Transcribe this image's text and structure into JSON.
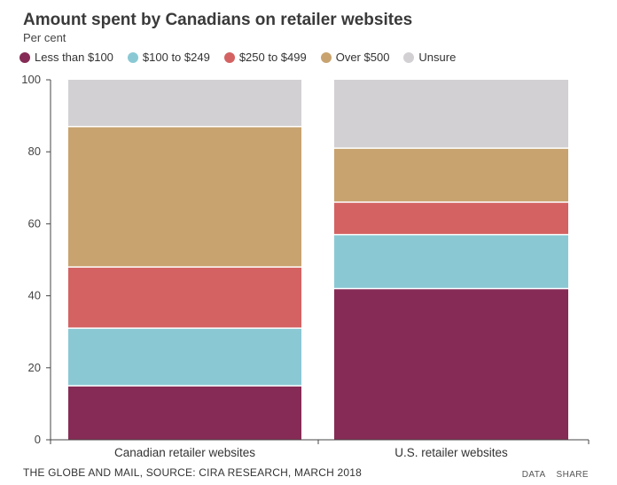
{
  "chart_data": {
    "type": "bar",
    "stacked": true,
    "title": "Amount spent by Canadians on retailer websites",
    "subtitle": "Per cent",
    "xlabel": "",
    "ylabel": "Per cent",
    "ylim": [
      0,
      100
    ],
    "yticks": [
      0,
      20,
      40,
      60,
      80,
      100
    ],
    "categories": [
      "Canadian retailer websites",
      "U.S. retailer websites"
    ],
    "series": [
      {
        "name": "Less than $100",
        "color": "#862b55",
        "values": [
          15,
          42
        ]
      },
      {
        "name": "$100 to $249",
        "color": "#8ac9d4",
        "values": [
          16,
          15
        ]
      },
      {
        "name": "$250 to $499",
        "color": "#d46262",
        "values": [
          17,
          9
        ]
      },
      {
        "name": "Over $500",
        "color": "#c8a36f",
        "values": [
          39,
          15
        ]
      },
      {
        "name": "Unsure",
        "color": "#d2d0d3",
        "values": [
          13,
          19
        ]
      }
    ],
    "legend_position": "top-left"
  },
  "footer": {
    "source": "THE GLOBE AND MAIL, SOURCE: CIRA RESEARCH, MARCH 2018",
    "data_link": "DATA",
    "share_link": "SHARE"
  }
}
